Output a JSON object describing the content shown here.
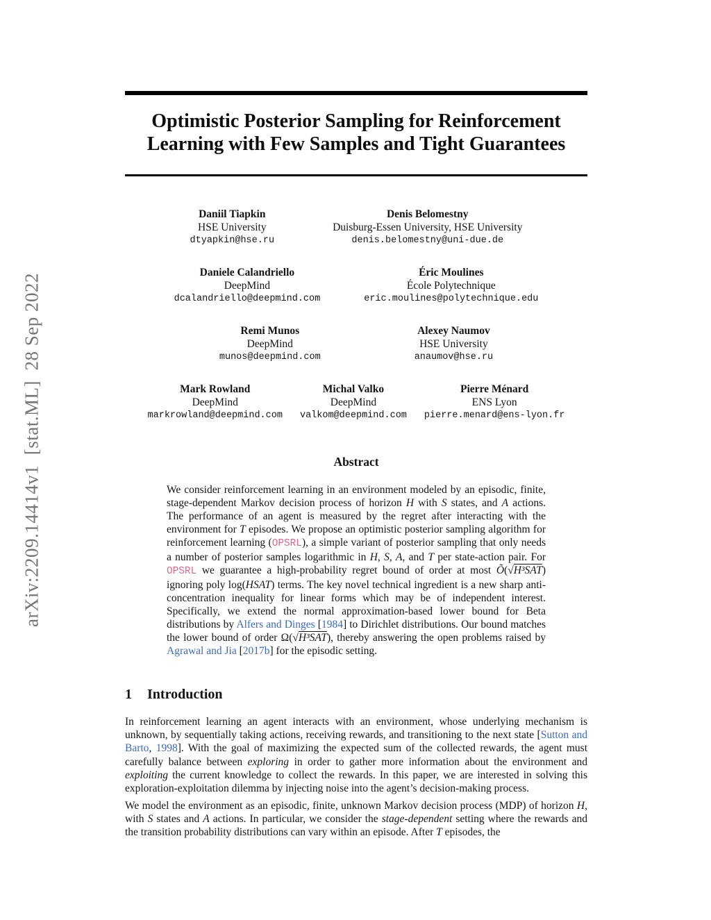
{
  "colors": {
    "link": "#3a68cf",
    "code": "#e8648c",
    "watermark": "#757575",
    "rule": "#000000"
  },
  "watermark": {
    "text": "arXiv:2209.14414v1  [stat.ML]  28 Sep 2022"
  },
  "title": {
    "lines": [
      "Optimistic Posterior Sampling for Reinforcement",
      "Learning with Few Samples and Tight Guarantees"
    ]
  },
  "authors": {
    "rows": [
      {
        "blocks": [
          {
            "name": "Daniil Tiapkin",
            "affiliation": "HSE University",
            "email": "dtyapkin@hse.ru"
          },
          {
            "name": "Denis Belomestny",
            "affiliation": "Duisburg-Essen University, HSE University",
            "email": "denis.belomestny@uni-due.de"
          }
        ]
      },
      {
        "blocks": [
          {
            "name": "Daniele Calandriello",
            "affiliation": "DeepMind",
            "email": "dcalandriello@deepmind.com"
          },
          {
            "name": "Éric Moulines",
            "affiliation": "École Polytechnique",
            "email": "eric.moulines@polytechnique.edu"
          }
        ]
      },
      {
        "blocks": [
          {
            "name": "Remi Munos",
            "affiliation": "DeepMind",
            "email": "munos@deepmind.com"
          },
          {
            "name": "Alexey Naumov",
            "affiliation": "HSE University",
            "email": "anaumov@hse.ru"
          }
        ]
      },
      {
        "blocks": [
          {
            "name": "Mark Rowland",
            "affiliation": "DeepMind",
            "email": "markrowland@deepmind.com"
          },
          {
            "name": "Michal Valko",
            "affiliation": "DeepMind",
            "email": "valkom@deepmind.com"
          },
          {
            "name": "Pierre Ménard",
            "affiliation": "ENS Lyon",
            "email": "pierre.menard@ens-lyon.fr"
          }
        ]
      }
    ]
  },
  "abstract": {
    "heading": "Abstract",
    "segments": [
      {
        "t": "We consider reinforcement learning in an environment modeled by an episodic, finite, stage-dependent Markov decision process of horizon "
      },
      {
        "t": "H",
        "s": "m"
      },
      {
        "t": " with "
      },
      {
        "t": "S",
        "s": "m"
      },
      {
        "t": " states, and "
      },
      {
        "t": "A",
        "s": "m"
      },
      {
        "t": " actions. The performance of an agent is measured by the regret after interacting with the environment for "
      },
      {
        "t": "T",
        "s": "m"
      },
      {
        "t": " episodes. We propose an optimistic posterior sampling algorithm for reinforcement learning ("
      },
      {
        "t": "OPSRL",
        "s": "c"
      },
      {
        "t": "), a simple variant of posterior sampling that only needs a number of posterior samples logarithmic in "
      },
      {
        "t": "H",
        "s": "m"
      },
      {
        "t": ", "
      },
      {
        "t": "S",
        "s": "m"
      },
      {
        "t": ", "
      },
      {
        "t": "A",
        "s": "m"
      },
      {
        "t": ", and "
      },
      {
        "t": "T",
        "s": "m"
      },
      {
        "t": " per state-action pair. For "
      },
      {
        "t": "OPSRL",
        "s": "c"
      },
      {
        "t": " we guarantee a high-probability regret bound of order at most "
      },
      {
        "t": "Õ",
        "s": "m"
      },
      {
        "t": "(√"
      },
      {
        "t": "H³SAT",
        "s": "r"
      },
      {
        "t": ") ignoring poly log("
      },
      {
        "t": "HSAT",
        "s": "m"
      },
      {
        "t": ") terms. The key novel technical ingredient is a new sharp anti-concentration inequality for linear forms which may be of independent interest. Specifically, we extend the normal approximation-based lower bound for Beta distributions by "
      },
      {
        "t": "Alfers and Dinges",
        "s": "l"
      },
      {
        "t": " ["
      },
      {
        "t": "1984",
        "s": "l"
      },
      {
        "t": "] to Dirichlet distributions. Our bound matches the lower bound of order Ω(√"
      },
      {
        "t": "H³SAT",
        "s": "r"
      },
      {
        "t": "), thereby answering the open problems raised by "
      },
      {
        "t": "Agrawal and Jia",
        "s": "l"
      },
      {
        "t": " ["
      },
      {
        "t": "2017b",
        "s": "l"
      },
      {
        "t": "] for the episodic setting."
      }
    ]
  },
  "introduction": {
    "number": "1",
    "title": "Introduction",
    "paragraphs": [
      {
        "segments": [
          {
            "t": "In reinforcement learning an agent interacts with an environment, whose underlying mechanism is unknown, by sequentially taking actions, receiving rewards, and transitioning to the next state ["
          },
          {
            "t": "Sutton and Barto",
            "s": "l"
          },
          {
            "t": ", "
          },
          {
            "t": "1998",
            "s": "l"
          },
          {
            "t": "]. With the goal of maximizing the expected sum of the collected rewards, the agent must carefully balance between "
          },
          {
            "t": "exploring",
            "s": "e"
          },
          {
            "t": " in order to gather more information about the environment and "
          },
          {
            "t": "exploiting",
            "s": "e"
          },
          {
            "t": " the current knowledge to collect the rewards. In this paper, we are interested in solving this exploration-exploitation dilemma by injecting noise into the agent’s decision-making process."
          }
        ]
      },
      {
        "segments": [
          {
            "t": "We model the environment as an episodic, finite, unknown Markov decision process (MDP) of horizon "
          },
          {
            "t": "H",
            "s": "m"
          },
          {
            "t": ", with "
          },
          {
            "t": "S",
            "s": "m"
          },
          {
            "t": " states and "
          },
          {
            "t": "A",
            "s": "m"
          },
          {
            "t": " actions. In particular, we consider the "
          },
          {
            "t": "stage-dependent",
            "s": "e"
          },
          {
            "t": " setting where the rewards and the transition probability distributions can vary within an episode. After "
          },
          {
            "t": "T",
            "s": "m"
          },
          {
            "t": " episodes, the"
          }
        ]
      }
    ]
  }
}
